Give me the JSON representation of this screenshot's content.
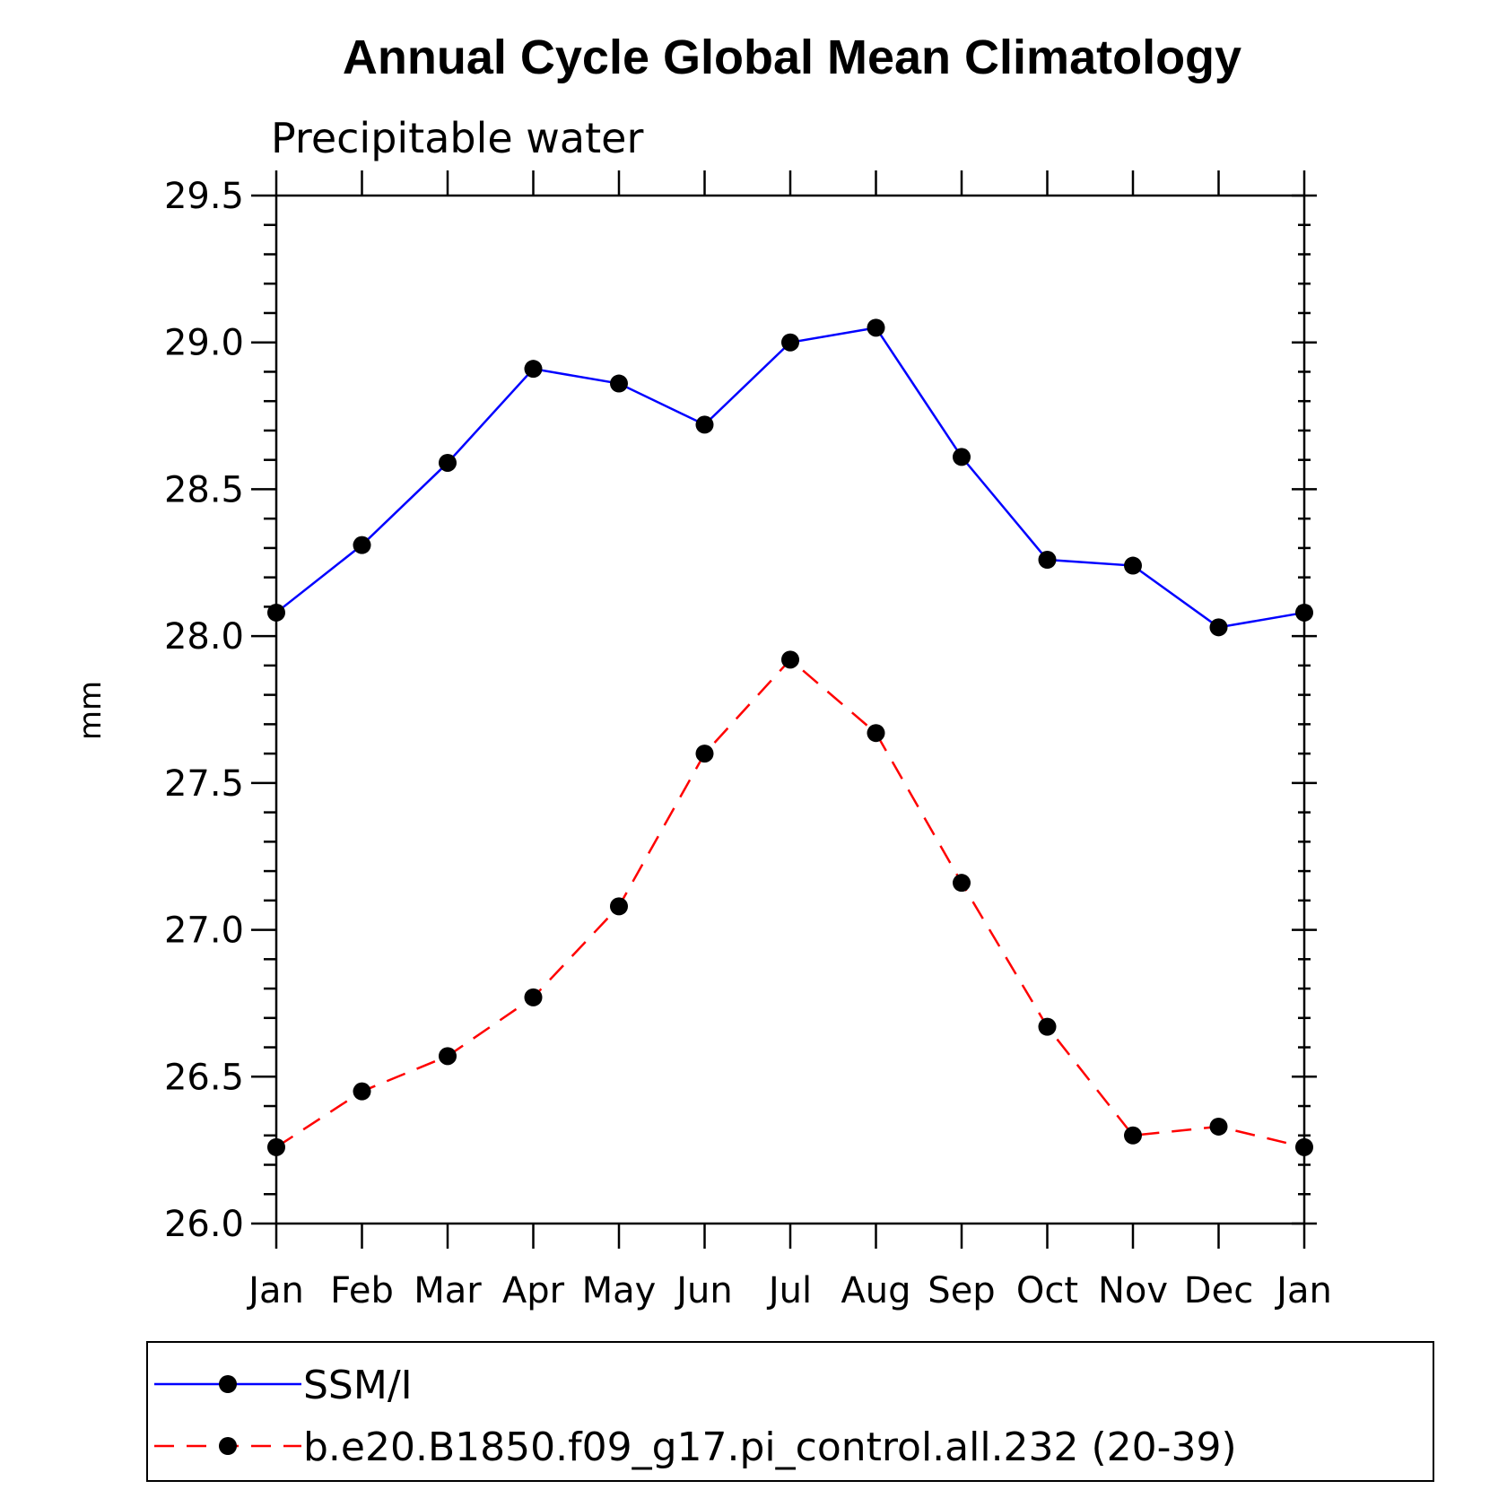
{
  "chart_data": {
    "type": "line",
    "title": "Annual Cycle Global Mean Climatology",
    "subtitle": "Precipitable water",
    "xlabel": "",
    "ylabel": "mm",
    "categories": [
      "Jan",
      "Feb",
      "Mar",
      "Apr",
      "May",
      "Jun",
      "Jul",
      "Aug",
      "Sep",
      "Oct",
      "Nov",
      "Dec",
      "Jan"
    ],
    "ylim": [
      26.0,
      29.5
    ],
    "yticks": [
      "26.0",
      "26.5",
      "27.0",
      "27.5",
      "28.0",
      "28.5",
      "29.0",
      "29.5"
    ],
    "grid": false,
    "legend_position": "bottom",
    "series": [
      {
        "name": "SSM/I",
        "color": "#0000ff",
        "dash": "solid",
        "marker": "filled-circle",
        "values": [
          28.08,
          28.31,
          28.59,
          28.91,
          28.86,
          28.72,
          29.0,
          29.05,
          28.61,
          28.26,
          28.24,
          28.03,
          28.08
        ]
      },
      {
        "name": "b.e20.B1850.f09_g17.pi_control.all.232 (20-39)",
        "color": "#ff0000",
        "dash": "dashed",
        "marker": "filled-circle",
        "values": [
          26.26,
          26.45,
          26.57,
          26.77,
          27.08,
          27.6,
          27.92,
          27.67,
          27.16,
          26.67,
          26.3,
          26.33,
          26.26
        ]
      }
    ]
  }
}
